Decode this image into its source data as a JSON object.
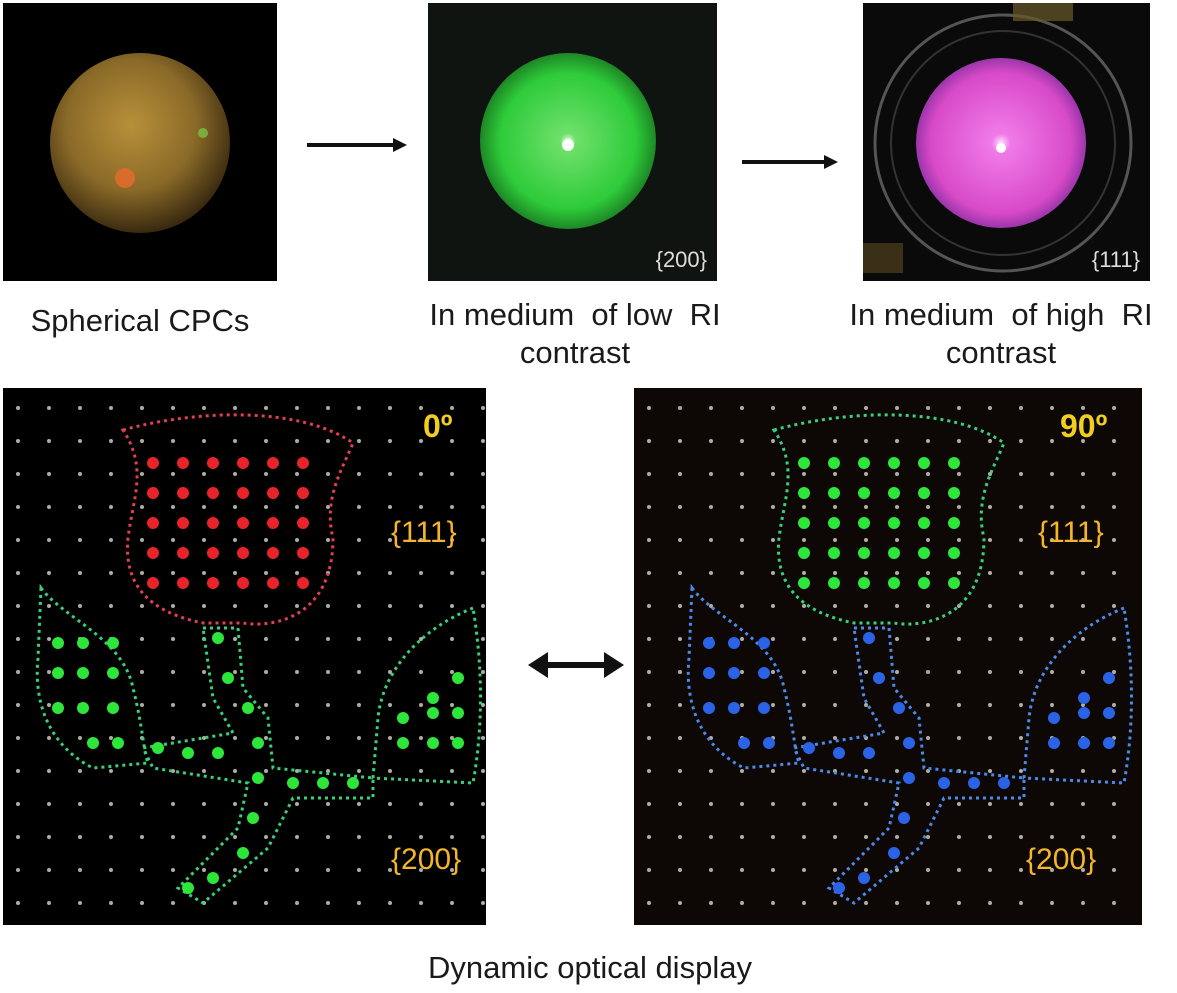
{
  "top_row": {
    "panel1": {
      "caption": "Spherical CPCs"
    },
    "panel2": {
      "label": "{200}",
      "caption_line1": "In medium  of low  RI",
      "caption_line2": "contrast"
    },
    "panel3": {
      "label": "{111}",
      "caption_line1": "In medium  of high  RI",
      "caption_line2": "contrast"
    }
  },
  "bottom_row": {
    "left": {
      "angle": "0º",
      "label_top": "{111}",
      "label_bottom": "{200}"
    },
    "right": {
      "angle": "90º",
      "label_top": "{111}",
      "label_bottom": "{200}"
    },
    "caption": "Dynamic optical display"
  },
  "colors": {
    "green_dot": "#2ee63a",
    "red_dot": "#e8242a",
    "blue_dot": "#2a63e6",
    "outline_red": "#e04050",
    "outline_green": "#3ad07a",
    "outline_blue": "#4a8ae8",
    "label_orange": "#f4b52a"
  }
}
